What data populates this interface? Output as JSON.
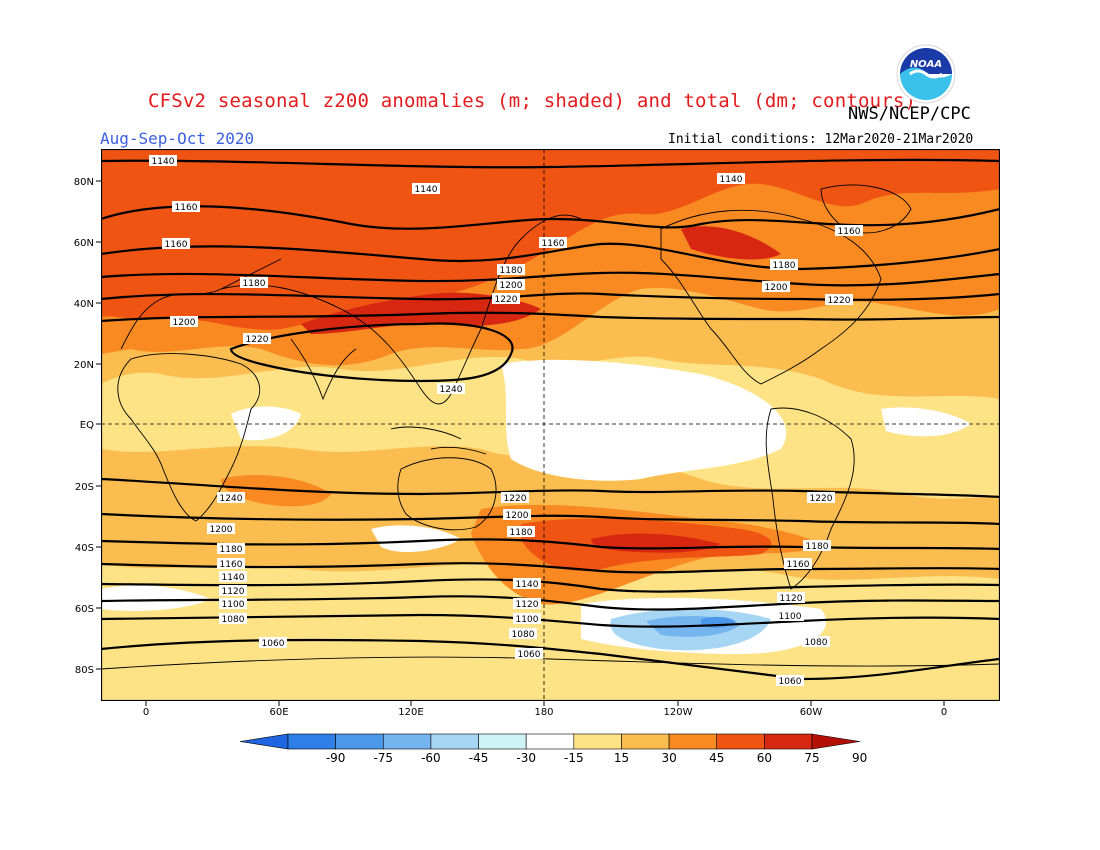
{
  "header": {
    "title": "CFSv2 seasonal z200 anomalies (m; shaded) and total (dm; contours)",
    "agency": "NWS/NCEP/CPC",
    "season": "Aug-Sep-Oct 2020",
    "initial_conditions": "Initial conditions: 12Mar2020-21Mar2020",
    "logo_text": "NOAA"
  },
  "map": {
    "lon_ticks": [
      "0",
      "60E",
      "120E",
      "180",
      "120W",
      "60W",
      "0"
    ],
    "lat_ticks": [
      "80N",
      "60N",
      "40N",
      "20N",
      "EQ",
      "20S",
      "40S",
      "60S",
      "80S"
    ],
    "contour_labels": [
      "1140",
      "1140",
      "1140",
      "1160",
      "1160",
      "1160",
      "1160",
      "1180",
      "1180",
      "1180",
      "1200",
      "1200",
      "1200",
      "1220",
      "1220",
      "1220",
      "1240",
      "1240",
      "1220",
      "1220",
      "1200",
      "1200",
      "1180",
      "1180",
      "1180",
      "1160",
      "1160",
      "1140",
      "1140",
      "1120",
      "1120",
      "1120",
      "1100",
      "1100",
      "1100",
      "1080",
      "1080",
      "1080",
      "1060",
      "1060",
      "1060"
    ]
  },
  "colorbar": {
    "labels": [
      "-90",
      "-75",
      "-60",
      "-45",
      "-30",
      "-15",
      "15",
      "30",
      "45",
      "60",
      "75",
      "90"
    ],
    "colors": [
      "#1f64e0",
      "#2f7fe6",
      "#4b98ea",
      "#74b4ef",
      "#a6d6f4",
      "#cff2f7",
      "#ffffff",
      "#fde286",
      "#fbbd4f",
      "#f98a22",
      "#ef5412",
      "#d72711",
      "#b31007"
    ]
  }
}
